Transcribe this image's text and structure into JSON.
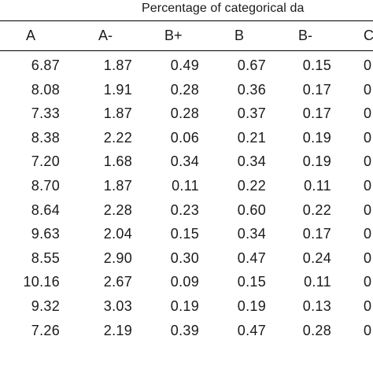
{
  "caption": "Percentage of categorical da",
  "headers": [
    "A",
    "A-",
    "B+",
    "B",
    "B-",
    "C"
  ],
  "rows": [
    [
      "6.87",
      "1.87",
      "0.49",
      "0.67",
      "0.15",
      "0"
    ],
    [
      "8.08",
      "1.91",
      "0.28",
      "0.36",
      "0.17",
      "0"
    ],
    [
      "7.33",
      "1.87",
      "0.28",
      "0.37",
      "0.17",
      "0"
    ],
    [
      "8.38",
      "2.22",
      "0.06",
      "0.21",
      "0.19",
      "0"
    ],
    [
      "7.20",
      "1.68",
      "0.34",
      "0.34",
      "0.19",
      "0"
    ],
    [
      "8.70",
      "1.87",
      "0.11",
      "0.22",
      "0.11",
      "0"
    ],
    [
      "8.64",
      "2.28",
      "0.23",
      "0.60",
      "0.22",
      "0"
    ],
    [
      "9.63",
      "2.04",
      "0.15",
      "0.34",
      "0.17",
      "0"
    ],
    [
      "8.55",
      "2.90",
      "0.30",
      "0.47",
      "0.24",
      "0"
    ],
    [
      "10.16",
      "2.67",
      "0.09",
      "0.15",
      "0.11",
      "0"
    ],
    [
      "9.32",
      "3.03",
      "0.19",
      "0.19",
      "0.13",
      "0"
    ],
    [
      "7.26",
      "2.19",
      "0.39",
      "0.47",
      "0.28",
      "0"
    ],
    [
      "",
      "",
      "",
      "",
      "",
      ""
    ]
  ]
}
